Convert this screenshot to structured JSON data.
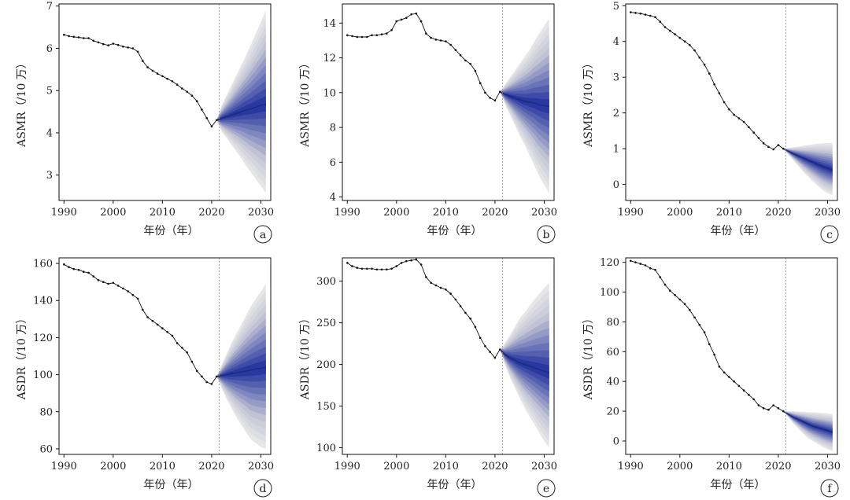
{
  "x_axis_title": "年份（年）",
  "x_ticks": [
    1990,
    2000,
    2010,
    2020,
    2030
  ],
  "chart_data": [
    {
      "type": "line",
      "label": "a",
      "ylabel": "ASMR（/10 万）",
      "xlim": [
        1989,
        2032
      ],
      "ylim": [
        2.4,
        7.05
      ],
      "yticks": [
        3,
        4,
        5,
        6,
        7
      ],
      "divider_year": 2021.5,
      "observed": {
        "x": [
          1990,
          1991,
          1992,
          1993,
          1994,
          1995,
          1996,
          1997,
          1998,
          1999,
          2000,
          2001,
          2002,
          2003,
          2004,
          2005,
          2006,
          2007,
          2008,
          2009,
          2010,
          2011,
          2012,
          2013,
          2014,
          2015,
          2016,
          2017,
          2018,
          2019,
          2020,
          2021
        ],
        "y": [
          6.32,
          6.29,
          6.27,
          6.26,
          6.24,
          6.24,
          6.18,
          6.14,
          6.1,
          6.07,
          6.11,
          6.08,
          6.04,
          6.02,
          6.0,
          5.92,
          5.7,
          5.55,
          5.47,
          5.4,
          5.34,
          5.28,
          5.22,
          5.14,
          5.05,
          4.97,
          4.88,
          4.75,
          4.55,
          4.35,
          4.15,
          4.3
        ]
      },
      "forecast": {
        "x": [
          2021,
          2022,
          2023,
          2024,
          2025,
          2026,
          2027,
          2028,
          2029,
          2030,
          2031
        ],
        "mean": [
          4.3,
          4.34,
          4.38,
          4.42,
          4.46,
          4.5,
          4.54,
          4.57,
          4.61,
          4.65,
          4.68
        ],
        "lower": [
          4.3,
          4.04,
          3.88,
          3.72,
          3.56,
          3.4,
          3.22,
          3.06,
          2.9,
          2.74,
          2.58
        ],
        "upper": [
          4.3,
          4.64,
          4.88,
          5.12,
          5.36,
          5.6,
          5.84,
          6.1,
          6.36,
          6.62,
          6.9
        ]
      }
    },
    {
      "type": "line",
      "label": "b",
      "ylabel": "ASMR（/10 万）",
      "xlim": [
        1989,
        2032
      ],
      "ylim": [
        3.8,
        15.1
      ],
      "yticks": [
        4,
        6,
        8,
        10,
        12,
        14
      ],
      "divider_year": 2021.5,
      "observed": {
        "x": [
          1990,
          1991,
          1992,
          1993,
          1994,
          1995,
          1996,
          1997,
          1998,
          1999,
          2000,
          2001,
          2002,
          2003,
          2004,
          2005,
          2006,
          2007,
          2008,
          2009,
          2010,
          2011,
          2012,
          2013,
          2014,
          2015,
          2016,
          2017,
          2018,
          2019,
          2020,
          2021
        ],
        "y": [
          13.3,
          13.25,
          13.2,
          13.2,
          13.2,
          13.3,
          13.3,
          13.35,
          13.4,
          13.6,
          14.1,
          14.2,
          14.3,
          14.5,
          14.55,
          14.1,
          13.4,
          13.15,
          13.05,
          13.0,
          12.95,
          12.75,
          12.45,
          12.15,
          11.85,
          11.65,
          11.25,
          10.55,
          10.0,
          9.7,
          9.55,
          10.05
        ]
      },
      "forecast": {
        "x": [
          2021,
          2022,
          2023,
          2024,
          2025,
          2026,
          2027,
          2028,
          2029,
          2030,
          2031
        ],
        "mean": [
          10.05,
          9.9,
          9.8,
          9.7,
          9.6,
          9.5,
          9.45,
          9.4,
          9.3,
          9.25,
          9.2
        ],
        "lower": [
          10.05,
          9.35,
          8.75,
          8.15,
          7.55,
          7.0,
          6.4,
          5.8,
          5.2,
          4.7,
          4.2
        ],
        "upper": [
          10.05,
          10.45,
          10.85,
          11.25,
          11.65,
          12.05,
          12.45,
          12.95,
          13.4,
          13.85,
          14.25
        ]
      }
    },
    {
      "type": "line",
      "label": "c",
      "ylabel": "ASMR（/10 万）",
      "xlim": [
        1989,
        2032
      ],
      "ylim": [
        -0.45,
        5.05
      ],
      "yticks": [
        0,
        1,
        2,
        3,
        4,
        5
      ],
      "divider_year": 2021.5,
      "observed": {
        "x": [
          1990,
          1991,
          1992,
          1993,
          1994,
          1995,
          1996,
          1997,
          1998,
          1999,
          2000,
          2001,
          2002,
          2003,
          2004,
          2005,
          2006,
          2007,
          2008,
          2009,
          2010,
          2011,
          2012,
          2013,
          2014,
          2015,
          2016,
          2017,
          2018,
          2019,
          2020,
          2021
        ],
        "y": [
          4.82,
          4.8,
          4.78,
          4.75,
          4.72,
          4.68,
          4.55,
          4.4,
          4.3,
          4.2,
          4.1,
          4.0,
          3.9,
          3.75,
          3.55,
          3.35,
          3.1,
          2.8,
          2.55,
          2.3,
          2.1,
          1.95,
          1.85,
          1.75,
          1.6,
          1.45,
          1.3,
          1.15,
          1.05,
          0.98,
          1.1,
          1.0
        ]
      },
      "forecast": {
        "x": [
          2021,
          2022,
          2023,
          2024,
          2025,
          2026,
          2027,
          2028,
          2029,
          2030,
          2031
        ],
        "mean": [
          1.0,
          0.93,
          0.86,
          0.8,
          0.74,
          0.68,
          0.62,
          0.56,
          0.5,
          0.45,
          0.4
        ],
        "lower": [
          1.0,
          0.84,
          0.68,
          0.52,
          0.36,
          0.22,
          0.08,
          -0.04,
          -0.16,
          -0.24,
          -0.3
        ],
        "upper": [
          1.0,
          1.02,
          1.04,
          1.06,
          1.08,
          1.1,
          1.12,
          1.14,
          1.15,
          1.16,
          1.16
        ]
      }
    },
    {
      "type": "line",
      "label": "d",
      "ylabel": "ASDR（/10 万）",
      "xlim": [
        1989,
        2032
      ],
      "ylim": [
        57,
        163
      ],
      "yticks": [
        60,
        80,
        100,
        120,
        140,
        160
      ],
      "divider_year": 2021.5,
      "observed": {
        "x": [
          1990,
          1991,
          1992,
          1993,
          1994,
          1995,
          1996,
          1997,
          1998,
          1999,
          2000,
          2001,
          2002,
          2003,
          2004,
          2005,
          2006,
          2007,
          2008,
          2009,
          2010,
          2011,
          2012,
          2013,
          2014,
          2015,
          2016,
          2017,
          2018,
          2019,
          2020,
          2021
        ],
        "y": [
          159.5,
          158,
          157,
          156.5,
          155.5,
          155,
          153,
          151,
          150,
          149,
          149.5,
          148,
          146.5,
          145,
          143,
          141,
          135,
          131,
          129,
          127,
          125,
          123,
          121,
          117,
          114.5,
          112,
          107,
          102,
          99,
          96,
          95,
          99
        ]
      },
      "forecast": {
        "x": [
          2021,
          2022,
          2023,
          2024,
          2025,
          2026,
          2027,
          2028,
          2029,
          2030,
          2031
        ],
        "mean": [
          99,
          99.5,
          100,
          100.5,
          101,
          101.5,
          102,
          102.5,
          103,
          103.5,
          104
        ],
        "lower": [
          99,
          93,
          87,
          82,
          77,
          73,
          69,
          65,
          63,
          61,
          60
        ],
        "upper": [
          99,
          105,
          111,
          117,
          122,
          127,
          132,
          137,
          141,
          145,
          149
        ]
      }
    },
    {
      "type": "line",
      "label": "e",
      "ylabel": "ASDR（/10 万）",
      "xlim": [
        1989,
        2032
      ],
      "ylim": [
        92,
        328
      ],
      "yticks": [
        100,
        150,
        200,
        250,
        300
      ],
      "divider_year": 2021.5,
      "observed": {
        "x": [
          1990,
          1991,
          1992,
          1993,
          1994,
          1995,
          1996,
          1997,
          1998,
          1999,
          2000,
          2001,
          2002,
          2003,
          2004,
          2005,
          2006,
          2007,
          2008,
          2009,
          2010,
          2011,
          2012,
          2013,
          2014,
          2015,
          2016,
          2017,
          2018,
          2019,
          2020,
          2021
        ],
        "y": [
          322,
          318,
          316,
          315,
          315,
          315,
          314,
          314,
          314,
          315,
          318,
          322,
          324,
          325,
          326,
          320,
          305,
          298,
          295,
          292,
          290,
          285,
          278,
          270,
          262,
          255,
          245,
          232,
          222,
          215,
          208,
          218
        ]
      },
      "forecast": {
        "x": [
          2021,
          2022,
          2023,
          2024,
          2025,
          2026,
          2027,
          2028,
          2029,
          2030,
          2031
        ],
        "mean": [
          218,
          212,
          208,
          205,
          202,
          200,
          198,
          196,
          194,
          192,
          190
        ],
        "lower": [
          218,
          200,
          185,
          172,
          160,
          148,
          138,
          128,
          118,
          108,
          100
        ],
        "upper": [
          218,
          225,
          235,
          245,
          255,
          262,
          270,
          278,
          285,
          292,
          298
        ]
      }
    },
    {
      "type": "line",
      "label": "f",
      "ylabel": "ASDR（/10 万）",
      "xlim": [
        1989,
        2032
      ],
      "ylim": [
        -9,
        123
      ],
      "yticks": [
        0,
        20,
        40,
        60,
        80,
        100,
        120
      ],
      "divider_year": 2021.5,
      "observed": {
        "x": [
          1990,
          1991,
          1992,
          1993,
          1994,
          1995,
          1996,
          1997,
          1998,
          1999,
          2000,
          2001,
          2002,
          2003,
          2004,
          2005,
          2006,
          2007,
          2008,
          2009,
          2010,
          2011,
          2012,
          2013,
          2014,
          2015,
          2016,
          2017,
          2018,
          2019,
          2020,
          2021
        ],
        "y": [
          121,
          120,
          119,
          118,
          116,
          115,
          110,
          105,
          101,
          98,
          95,
          92,
          88,
          83,
          78,
          73,
          65,
          58,
          50,
          46,
          43,
          40,
          37,
          34,
          31,
          28,
          24,
          22,
          21,
          24,
          22,
          20
        ]
      },
      "forecast": {
        "x": [
          2021,
          2022,
          2023,
          2024,
          2025,
          2026,
          2027,
          2028,
          2029,
          2030,
          2031
        ],
        "mean": [
          20,
          18,
          16,
          14.5,
          13,
          11.5,
          10,
          9,
          8,
          7,
          6
        ],
        "lower": [
          20,
          16,
          12,
          8.5,
          5,
          2,
          0,
          -2,
          -4,
          -5.5,
          -7
        ],
        "upper": [
          20,
          20,
          20,
          19.8,
          19.6,
          19.4,
          19.2,
          19,
          18.8,
          18.5,
          18
        ]
      }
    }
  ]
}
